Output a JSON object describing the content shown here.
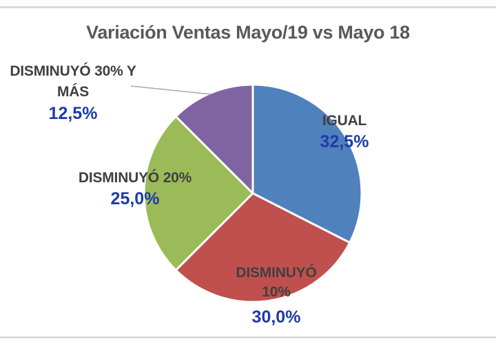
{
  "colors": {
    "background": "#FFFFFF",
    "title_text": "#595959",
    "category_label_text": "#404040",
    "percent_label_text": "#1F3BA6",
    "slice_border": "#FFFFFF",
    "frame_line": "#D9D9D9",
    "leader_line": "#A6A6A6"
  },
  "chart_data": {
    "type": "pie",
    "title": "Variación Ventas Mayo/19 vs Mayo 18",
    "unit": "percent",
    "start_angle_deg": 0,
    "direction": "clockwise",
    "legend_position": "none",
    "grid": false,
    "categories": [
      "IGUAL",
      "DISMINUYÓ 10%",
      "DISMINUYÓ 20%",
      "DISMINUYÓ 30% Y MÁS"
    ],
    "values": [
      32.5,
      30.0,
      25.0,
      12.5
    ],
    "slices": [
      {
        "label": "IGUAL",
        "label_lines": [
          "IGUAL"
        ],
        "value": 32.5,
        "value_text": "32,5%",
        "color": "#4F81BD"
      },
      {
        "label": "DISMINUYÓ 10%",
        "label_lines": [
          "DISMINUYÓ",
          "10%"
        ],
        "value": 30.0,
        "value_text": "30,0%",
        "color": "#C0504D"
      },
      {
        "label": "DISMINUYÓ 20%",
        "label_lines": [
          "DISMINUYÓ 20%"
        ],
        "value": 25.0,
        "value_text": "25,0%",
        "color": "#9BBB59"
      },
      {
        "label": "DISMINUYÓ 30% Y MÁS",
        "label_lines": [
          "DISMINUYÓ 30% Y",
          "MÁS"
        ],
        "value": 12.5,
        "value_text": "12,5%",
        "color": "#8064A2"
      }
    ]
  }
}
